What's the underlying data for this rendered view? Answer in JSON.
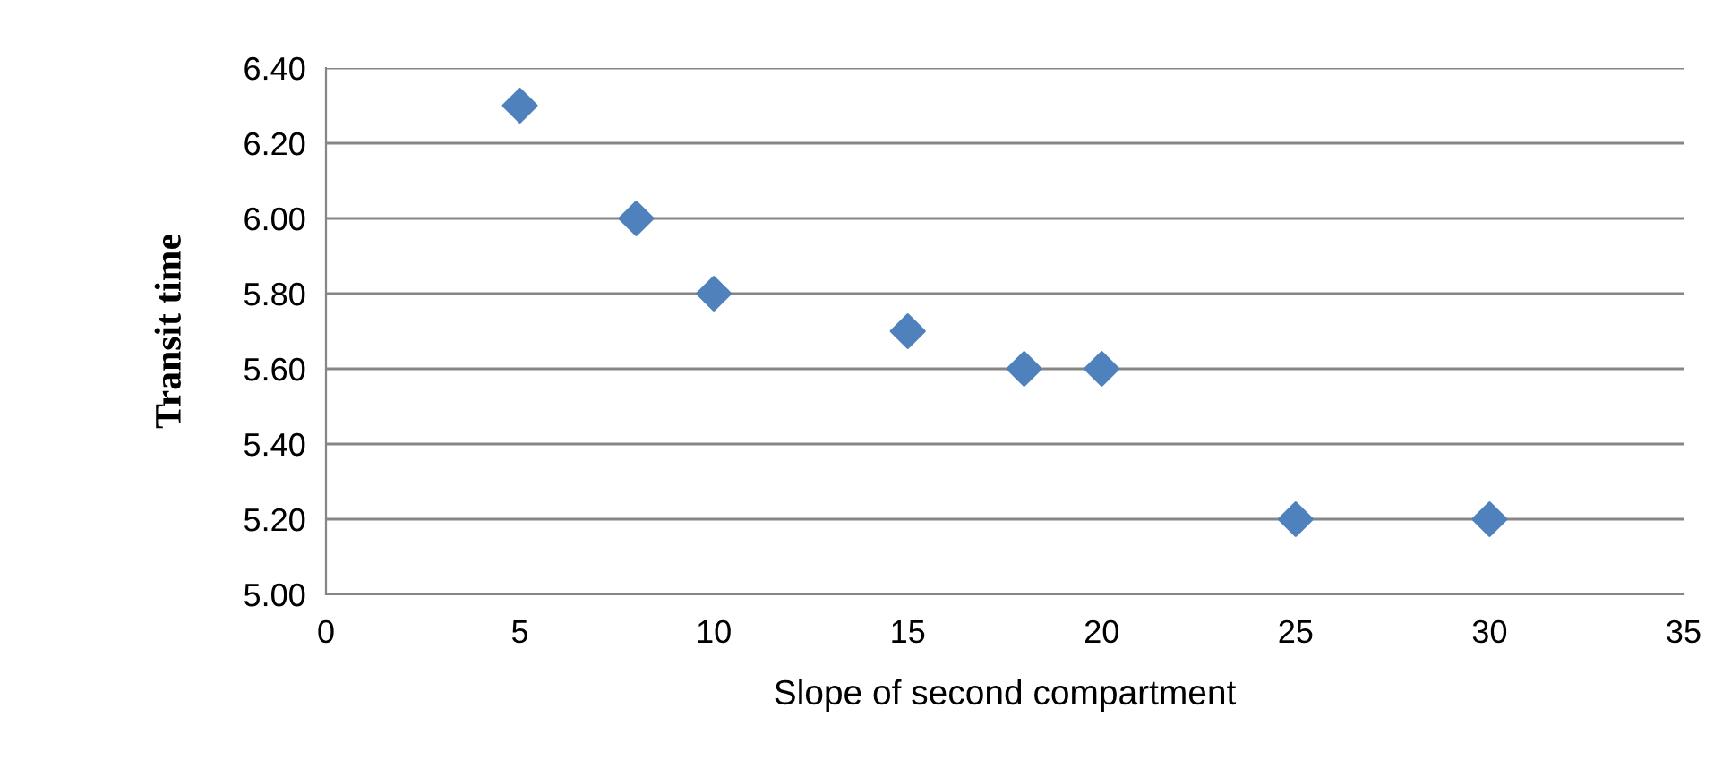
{
  "chart_data": {
    "type": "scatter",
    "xlabel": "Slope of second compartment",
    "ylabel": "Transit time",
    "x": [
      5,
      8,
      10,
      15,
      18,
      20,
      25,
      30
    ],
    "series": [
      {
        "color": "#4f81bd",
        "values": [
          6.3,
          6.0,
          5.8,
          5.7,
          5.6,
          5.6,
          5.2,
          5.2
        ]
      }
    ],
    "xlim": [
      0,
      35
    ],
    "xticks": [
      0,
      5,
      10,
      15,
      20,
      25,
      30,
      35
    ],
    "ylim": [
      5.0,
      6.4
    ],
    "yticks": [
      {
        "value": 5.0,
        "label": "5.00"
      },
      {
        "value": 5.2,
        "label": "5.20"
      },
      {
        "value": 5.4,
        "label": "5.40"
      },
      {
        "value": 5.6,
        "label": "5.60"
      },
      {
        "value": 5.8,
        "label": "5.80"
      },
      {
        "value": 6.0,
        "label": "6.00"
      },
      {
        "value": 6.2,
        "label": "6.20"
      },
      {
        "value": 6.4,
        "label": "6.40"
      }
    ],
    "grid": "y",
    "marker": "diamond",
    "legend": false
  }
}
